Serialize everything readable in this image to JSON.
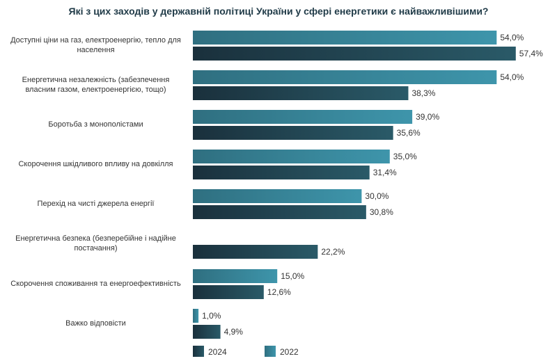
{
  "chart_data": {
    "type": "bar",
    "title": "Які з цих заходів у державній політиці України у сфері енергетики є найважливішими?",
    "orientation": "horizontal",
    "categories": [
      "Доступні ціни на газ, електроенергію, тепло для населення",
      "Енергетична незалежність (забезпечення власним газом, електроенергією, тощо)",
      "Боротьба з монополістами",
      "Скорочення шкідливого впливу на довкілля",
      "Перехід на чисті джерела енергії",
      "Енергетична безпека (безперебійне і надійне постачання)",
      "Скорочення споживання та енергоефективність",
      "Важко відповісти"
    ],
    "series": [
      {
        "name": "2022",
        "color": "#3a8ca2",
        "values": [
          54.0,
          54.0,
          39.0,
          35.0,
          30.0,
          null,
          15.0,
          1.0
        ],
        "labels": [
          "54,0%",
          "54,0%",
          "39,0%",
          "35,0%",
          "30,0%",
          null,
          "15,0%",
          "1,0%"
        ]
      },
      {
        "name": "2024",
        "color": "#1d3c4a",
        "values": [
          57.4,
          38.3,
          35.6,
          31.4,
          30.8,
          22.2,
          12.6,
          4.9
        ],
        "labels": [
          "57,4%",
          "38,3%",
          "35,6%",
          "31,4%",
          "30,8%",
          "22,2%",
          "12,6%",
          "4,9%"
        ]
      }
    ],
    "legend_order": [
      "2024",
      "2022"
    ],
    "legend_position": "bottom",
    "grid": false
  }
}
